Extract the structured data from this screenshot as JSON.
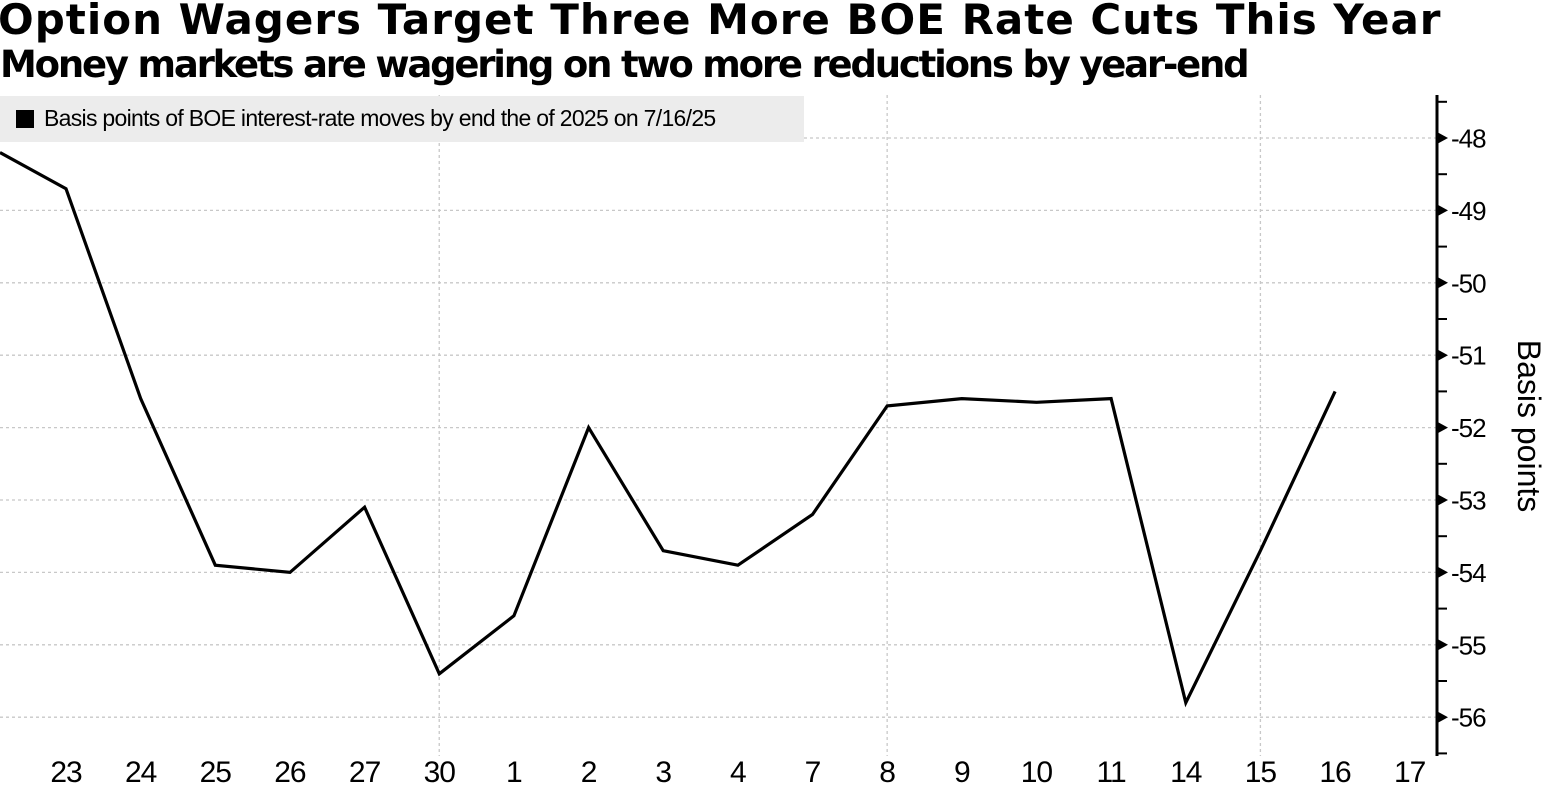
{
  "chart_data": {
    "type": "line",
    "title": "Option Wagers Target Three More BOE Rate Cuts This Year",
    "subtitle": "Money markets are wagering on two more reductions by year-end",
    "legend_label": "Basis points of BOE interest-rate moves by end the of 2025 on 7/16/25",
    "legend_marker": "black-square",
    "legend_position": "top-left",
    "ylabel": "Basis points",
    "axis_side": "right",
    "grid": true,
    "ylim": [
      -56.5,
      -47.4
    ],
    "yticks": [
      -48,
      -49,
      -50,
      -51,
      -52,
      -53,
      -54,
      -55,
      -56
    ],
    "categories": [
      "23",
      "24",
      "25",
      "26",
      "27",
      "30",
      "1",
      "2",
      "3",
      "4",
      "7",
      "8",
      "9",
      "10",
      "11",
      "14",
      "15",
      "16",
      "17"
    ],
    "values": [
      -48.7,
      -51.6,
      -53.9,
      -54.0,
      -53.1,
      -55.4,
      -54.6,
      -52.0,
      -53.7,
      -53.9,
      -53.2,
      -51.7,
      -51.6,
      -51.65,
      -51.6,
      -55.8,
      -53.7,
      -51.5,
      null
    ],
    "left_edge_value": -48.2,
    "vertical_gridlines_at": [
      "30",
      "8",
      "15"
    ],
    "line_color": "#000000",
    "grid_color": "#c8c8c8",
    "axis_color": "#000000",
    "legend_bg": "#ececec"
  }
}
